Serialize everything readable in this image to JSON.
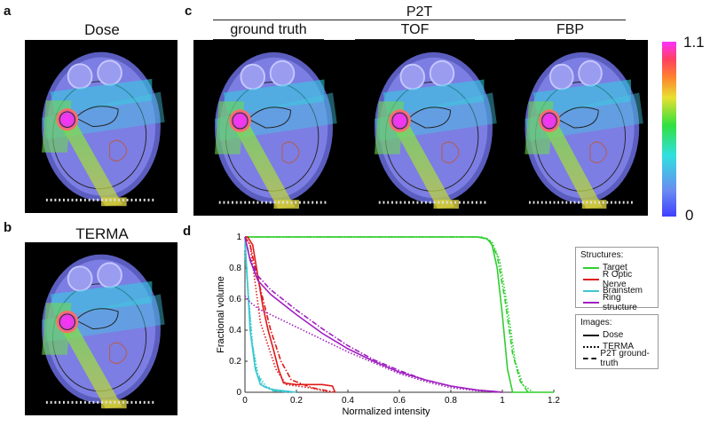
{
  "panels": {
    "a": {
      "letter": "a",
      "title": "Dose"
    },
    "b": {
      "letter": "b",
      "title": "TERMA"
    },
    "c": {
      "letter": "c",
      "group_title": "P2T",
      "columns": [
        "ground truth",
        "TOF",
        "FBP"
      ]
    },
    "d": {
      "letter": "d"
    }
  },
  "colorbar": {
    "max_label": "1.1",
    "min_label": "0"
  },
  "chart_data": {
    "type": "line",
    "xlabel": "Normalized intensity",
    "ylabel": "Fractional volume",
    "xlim": [
      0,
      1.2
    ],
    "ylim": [
      0,
      1
    ],
    "x_ticks": [
      "0",
      "0.2",
      "0.4",
      "0.6",
      "0.8",
      "1",
      "1.2"
    ],
    "y_ticks": [
      "0",
      "0.2",
      "0.4",
      "0.6",
      "0.8",
      "1"
    ],
    "structures_title": "Structures:",
    "images_title": "Images:",
    "structures": [
      {
        "name": "Target",
        "color": "#2fcf2f"
      },
      {
        "name": "R Optic Nerve",
        "color": "#e01919"
      },
      {
        "name": "Brainstem",
        "color": "#3cc8d0"
      },
      {
        "name": "Ring structure",
        "color": "#a020c0"
      }
    ],
    "images": [
      {
        "name": "Dose",
        "dash": "solid"
      },
      {
        "name": "TERMA",
        "dash": "dotted"
      },
      {
        "name": "P2T ground-truth",
        "dash": "dashdot"
      }
    ],
    "series": [
      {
        "structure": "Target",
        "image": "Dose",
        "x": [
          0,
          0.9,
          0.94,
          0.96,
          0.98,
          1.0,
          1.02,
          1.04,
          1.2
        ],
        "y": [
          1,
          1,
          0.99,
          0.95,
          0.8,
          0.5,
          0.15,
          0,
          0
        ]
      },
      {
        "structure": "Target",
        "image": "TERMA",
        "x": [
          0,
          0.92,
          0.96,
          0.99,
          1.02,
          1.05,
          1.08,
          1.12
        ],
        "y": [
          1,
          1,
          0.97,
          0.85,
          0.55,
          0.2,
          0.05,
          0
        ]
      },
      {
        "structure": "Target",
        "image": "P2T ground-truth",
        "x": [
          0,
          0.91,
          0.95,
          0.98,
          1.01,
          1.04,
          1.07,
          1.1
        ],
        "y": [
          1,
          1,
          0.98,
          0.88,
          0.6,
          0.25,
          0.07,
          0
        ]
      },
      {
        "structure": "R Optic Nerve",
        "image": "Dose",
        "x": [
          0,
          0.01,
          0.03,
          0.05,
          0.07,
          0.09,
          0.11,
          0.13,
          0.15,
          0.2,
          0.3,
          0.34,
          0.35
        ],
        "y": [
          1,
          1,
          0.95,
          0.75,
          0.55,
          0.4,
          0.28,
          0.15,
          0.06,
          0.05,
          0.05,
          0.04,
          0
        ]
      },
      {
        "structure": "R Optic Nerve",
        "image": "TERMA",
        "x": [
          0,
          0.02,
          0.04,
          0.06,
          0.09,
          0.12,
          0.16,
          0.25,
          0.33
        ],
        "y": [
          1,
          0.95,
          0.7,
          0.45,
          0.3,
          0.15,
          0.05,
          0.03,
          0
        ]
      },
      {
        "structure": "R Optic Nerve",
        "image": "P2T ground-truth",
        "x": [
          0,
          0.02,
          0.04,
          0.07,
          0.1,
          0.14,
          0.18,
          0.26,
          0.35
        ],
        "y": [
          1,
          0.95,
          0.8,
          0.6,
          0.4,
          0.2,
          0.08,
          0.03,
          0
        ]
      },
      {
        "structure": "Brainstem",
        "image": "Dose",
        "x": [
          0,
          0.01,
          0.02,
          0.04,
          0.06,
          0.1,
          0.15,
          0.2
        ],
        "y": [
          1,
          0.7,
          0.4,
          0.15,
          0.05,
          0.02,
          0.01,
          0
        ]
      },
      {
        "structure": "Brainstem",
        "image": "TERMA",
        "x": [
          0,
          0.015,
          0.03,
          0.05,
          0.08,
          0.12,
          0.2
        ],
        "y": [
          0.9,
          0.6,
          0.3,
          0.12,
          0.04,
          0.01,
          0
        ]
      },
      {
        "structure": "Brainstem",
        "image": "P2T ground-truth",
        "x": [
          0,
          0.012,
          0.025,
          0.045,
          0.07,
          0.11,
          0.18
        ],
        "y": [
          0.95,
          0.65,
          0.35,
          0.13,
          0.04,
          0.01,
          0
        ]
      },
      {
        "structure": "Ring structure",
        "image": "Dose",
        "x": [
          0,
          0.02,
          0.05,
          0.1,
          0.2,
          0.3,
          0.4,
          0.5,
          0.6,
          0.7,
          0.8,
          0.9,
          0.97,
          1.0
        ],
        "y": [
          1,
          0.85,
          0.72,
          0.63,
          0.5,
          0.38,
          0.28,
          0.2,
          0.13,
          0.08,
          0.04,
          0.015,
          0.005,
          0
        ]
      },
      {
        "structure": "Ring structure",
        "image": "TERMA",
        "x": [
          0,
          0.02,
          0.05,
          0.1,
          0.2,
          0.3,
          0.4,
          0.5,
          0.6,
          0.7,
          0.8,
          0.9,
          1.0
        ],
        "y": [
          0.62,
          0.58,
          0.54,
          0.5,
          0.42,
          0.34,
          0.26,
          0.19,
          0.12,
          0.07,
          0.03,
          0.01,
          0
        ]
      },
      {
        "structure": "Ring structure",
        "image": "P2T ground-truth",
        "x": [
          0,
          0.02,
          0.05,
          0.1,
          0.2,
          0.3,
          0.4,
          0.5,
          0.6,
          0.7,
          0.8,
          0.9,
          0.98
        ],
        "y": [
          1,
          0.86,
          0.75,
          0.66,
          0.53,
          0.41,
          0.3,
          0.21,
          0.14,
          0.08,
          0.04,
          0.015,
          0
        ]
      }
    ]
  }
}
